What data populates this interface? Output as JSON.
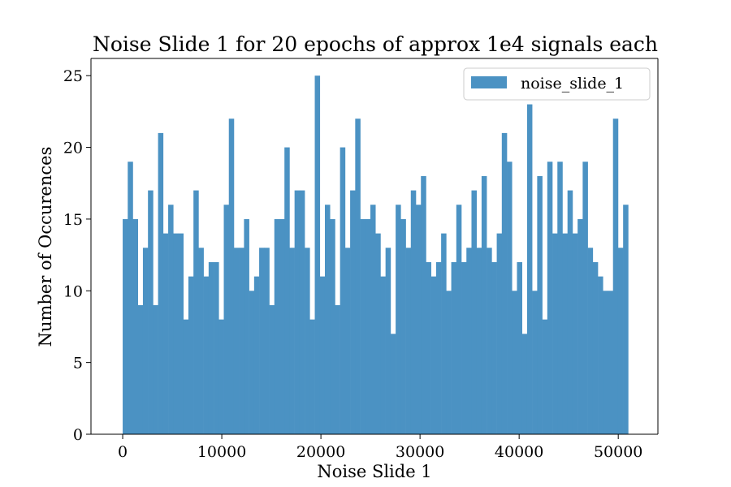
{
  "chart_data": {
    "type": "bar",
    "title": "Noise Slide 1 for 20 epochs of approx 1e4 signals each",
    "xlabel": "Noise Slide 1",
    "ylabel": "Number of Occurences",
    "xlim": [
      -3200,
      54000
    ],
    "ylim": [
      0,
      26.2
    ],
    "xticks": [
      0,
      10000,
      20000,
      30000,
      40000,
      50000
    ],
    "yticks": [
      0,
      5,
      10,
      15,
      20,
      25
    ],
    "bin_start": 0,
    "bin_width": 510,
    "color": "#4b92c3",
    "legend": {
      "placement": "upper-right",
      "label": "noise_slide_1"
    },
    "grid": false,
    "series": [
      {
        "name": "noise_slide_1",
        "values": [
          15,
          19,
          15,
          9,
          13,
          17,
          9,
          21,
          14,
          16,
          14,
          14,
          8,
          11,
          17,
          13,
          11,
          12,
          12,
          8,
          16,
          22,
          13,
          13,
          15,
          10,
          11,
          13,
          13,
          9,
          15,
          15,
          20,
          13,
          17,
          17,
          13,
          8,
          25,
          11,
          16,
          15,
          9,
          20,
          13,
          17,
          22,
          15,
          15,
          16,
          14,
          11,
          13,
          7,
          16,
          15,
          13,
          17,
          16,
          18,
          12,
          11,
          12,
          14,
          10,
          12,
          16,
          12,
          13,
          17,
          13,
          18,
          13,
          12,
          14,
          21,
          19,
          10,
          12,
          7,
          23,
          10,
          18,
          8,
          19,
          14,
          19,
          14,
          17,
          14,
          15,
          19,
          13,
          12,
          11,
          10,
          10,
          22,
          13,
          16
        ]
      }
    ]
  }
}
